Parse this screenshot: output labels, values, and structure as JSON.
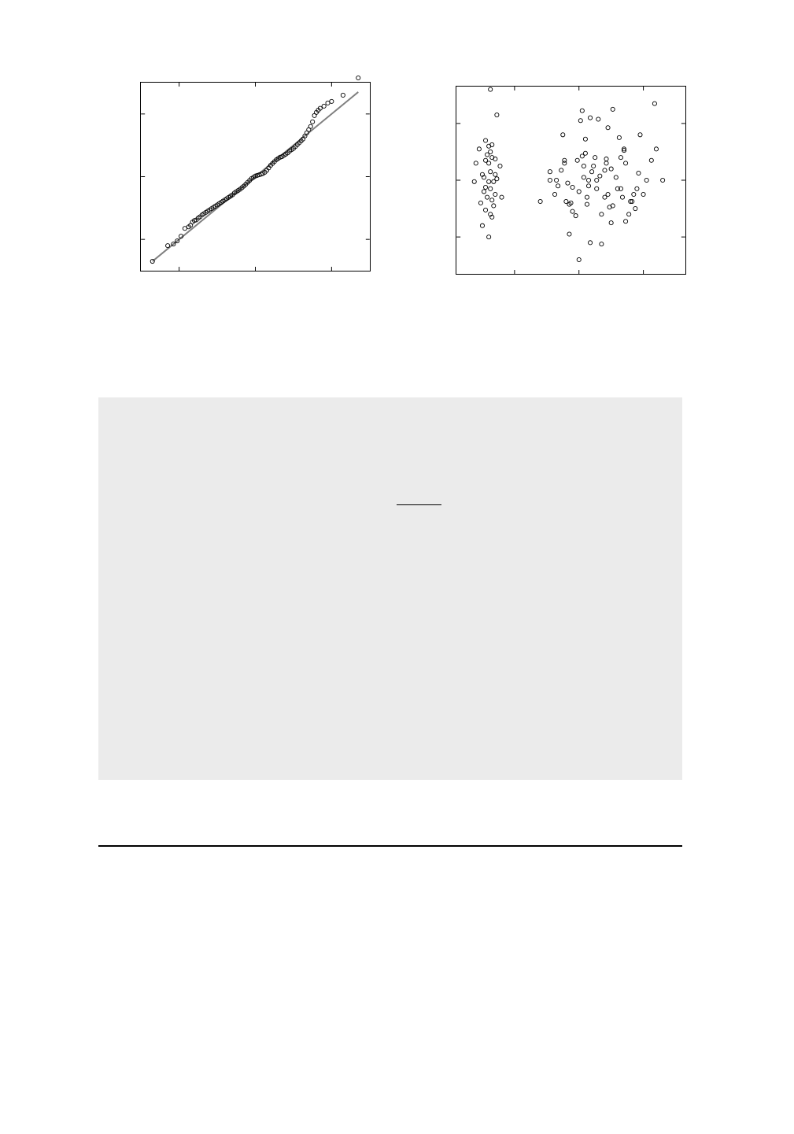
{
  "chart_data": [
    {
      "type": "scatter",
      "title": "",
      "xlabel": "",
      "ylabel": "",
      "grid": false,
      "xlim": [
        -3,
        3
      ],
      "ylim": [
        -3,
        3
      ],
      "xticks": [
        -2,
        0,
        2
      ],
      "yticks": [
        -2,
        0,
        2
      ],
      "reference_line": {
        "from": [
          -2.7,
          -2.7
        ],
        "to": [
          2.7,
          2.7
        ]
      },
      "series": [
        {
          "points": [
            [
              -2.7,
              -2.7
            ],
            [
              -2.3,
              -2.2
            ],
            [
              -2.15,
              -2.15
            ],
            [
              -2.05,
              -2.05
            ],
            [
              -1.95,
              -1.9
            ],
            [
              -1.85,
              -1.65
            ],
            [
              -1.75,
              -1.6
            ],
            [
              -1.7,
              -1.55
            ],
            [
              -1.65,
              -1.45
            ],
            [
              -1.6,
              -1.4
            ],
            [
              -1.55,
              -1.38
            ],
            [
              -1.5,
              -1.32
            ],
            [
              -1.45,
              -1.28
            ],
            [
              -1.4,
              -1.22
            ],
            [
              -1.35,
              -1.18
            ],
            [
              -1.3,
              -1.14
            ],
            [
              -1.25,
              -1.1
            ],
            [
              -1.2,
              -1.06
            ],
            [
              -1.15,
              -1.02
            ],
            [
              -1.1,
              -0.98
            ],
            [
              -1.05,
              -0.94
            ],
            [
              -1.0,
              -0.9
            ],
            [
              -0.95,
              -0.86
            ],
            [
              -0.9,
              -0.82
            ],
            [
              -0.85,
              -0.78
            ],
            [
              -0.8,
              -0.74
            ],
            [
              -0.75,
              -0.7
            ],
            [
              -0.7,
              -0.66
            ],
            [
              -0.65,
              -0.62
            ],
            [
              -0.6,
              -0.58
            ],
            [
              -0.55,
              -0.52
            ],
            [
              -0.5,
              -0.48
            ],
            [
              -0.45,
              -0.44
            ],
            [
              -0.4,
              -0.4
            ],
            [
              -0.35,
              -0.35
            ],
            [
              -0.3,
              -0.3
            ],
            [
              -0.25,
              -0.24
            ],
            [
              -0.2,
              -0.18
            ],
            [
              -0.15,
              -0.12
            ],
            [
              -0.1,
              -0.06
            ],
            [
              -0.05,
              -0.02
            ],
            [
              0.0,
              0.02
            ],
            [
              0.05,
              0.04
            ],
            [
              0.1,
              0.06
            ],
            [
              0.15,
              0.08
            ],
            [
              0.2,
              0.1
            ],
            [
              0.25,
              0.14
            ],
            [
              0.3,
              0.2
            ],
            [
              0.35,
              0.28
            ],
            [
              0.4,
              0.36
            ],
            [
              0.45,
              0.42
            ],
            [
              0.5,
              0.48
            ],
            [
              0.55,
              0.54
            ],
            [
              0.6,
              0.58
            ],
            [
              0.65,
              0.62
            ],
            [
              0.7,
              0.64
            ],
            [
              0.75,
              0.68
            ],
            [
              0.8,
              0.72
            ],
            [
              0.85,
              0.76
            ],
            [
              0.9,
              0.82
            ],
            [
              0.95,
              0.86
            ],
            [
              1.0,
              0.9
            ],
            [
              1.05,
              0.96
            ],
            [
              1.1,
              1.02
            ],
            [
              1.15,
              1.08
            ],
            [
              1.2,
              1.14
            ],
            [
              1.25,
              1.2
            ],
            [
              1.3,
              1.3
            ],
            [
              1.35,
              1.4
            ],
            [
              1.4,
              1.5
            ],
            [
              1.45,
              1.6
            ],
            [
              1.5,
              1.75
            ],
            [
              1.55,
              1.95
            ],
            [
              1.6,
              2.05
            ],
            [
              1.65,
              2.12
            ],
            [
              1.7,
              2.18
            ],
            [
              1.8,
              2.25
            ],
            [
              1.9,
              2.35
            ],
            [
              2.0,
              2.4
            ],
            [
              2.3,
              2.6
            ],
            [
              2.7,
              3.15
            ]
          ]
        }
      ]
    },
    {
      "type": "scatter",
      "title": "",
      "xlabel": "",
      "ylabel": "",
      "grid": false,
      "xlim": [
        -3.8,
        3.3
      ],
      "ylim": [
        -3.3,
        3.3
      ],
      "xticks": [
        -2,
        0,
        2
      ],
      "yticks": [
        -2,
        0,
        2
      ],
      "series": [
        {
          "points": [
            [
              -3.25,
              -0.05
            ],
            [
              -3.2,
              0.6
            ],
            [
              -3.1,
              1.1
            ],
            [
              -3.05,
              -0.8
            ],
            [
              -3.0,
              0.2
            ],
            [
              -3.0,
              -1.6
            ],
            [
              -2.95,
              0.1
            ],
            [
              -2.95,
              -0.4
            ],
            [
              -2.9,
              0.7
            ],
            [
              -2.9,
              1.4
            ],
            [
              -2.9,
              -1.05
            ],
            [
              -2.9,
              -0.25
            ],
            [
              -2.85,
              0.9
            ],
            [
              -2.85,
              -0.6
            ],
            [
              -2.8,
              1.2
            ],
            [
              -2.8,
              0.6
            ],
            [
              -2.8,
              -0.05
            ],
            [
              -2.8,
              -2.0
            ],
            [
              -2.75,
              3.2
            ],
            [
              -2.75,
              1.0
            ],
            [
              -2.75,
              0.3
            ],
            [
              -2.75,
              -0.3
            ],
            [
              -2.75,
              -1.2
            ],
            [
              -2.7,
              1.25
            ],
            [
              -2.7,
              0.8
            ],
            [
              -2.7,
              -0.7
            ],
            [
              -2.7,
              -1.3
            ],
            [
              -2.65,
              -0.05
            ],
            [
              -2.65,
              -0.9
            ],
            [
              -2.6,
              0.75
            ],
            [
              -2.6,
              0.2
            ],
            [
              -2.6,
              -0.5
            ],
            [
              -2.55,
              2.3
            ],
            [
              -2.55,
              0.05
            ],
            [
              -2.45,
              0.5
            ],
            [
              -2.4,
              -0.6
            ],
            [
              -1.2,
              -0.75
            ],
            [
              -0.9,
              0.3
            ],
            [
              -0.9,
              0.0
            ],
            [
              -0.75,
              -0.5
            ],
            [
              -0.7,
              0.0
            ],
            [
              -0.65,
              -0.2
            ],
            [
              -0.55,
              0.35
            ],
            [
              -0.5,
              1.6
            ],
            [
              -0.45,
              0.6
            ],
            [
              -0.45,
              0.7
            ],
            [
              -0.4,
              -0.75
            ],
            [
              -0.35,
              -0.1
            ],
            [
              -0.3,
              -0.85
            ],
            [
              -0.3,
              -1.9
            ],
            [
              -0.25,
              -0.8
            ],
            [
              -0.2,
              -0.25
            ],
            [
              -0.2,
              -1.1
            ],
            [
              -0.1,
              -1.25
            ],
            [
              -0.05,
              0.7
            ],
            [
              0.0,
              -0.4
            ],
            [
              0.0,
              -2.8
            ],
            [
              0.05,
              2.1
            ],
            [
              0.1,
              0.85
            ],
            [
              0.1,
              2.45
            ],
            [
              0.15,
              0.1
            ],
            [
              0.15,
              0.5
            ],
            [
              0.2,
              0.95
            ],
            [
              0.2,
              1.45
            ],
            [
              0.25,
              -0.6
            ],
            [
              0.25,
              -0.85
            ],
            [
              0.3,
              0.0
            ],
            [
              0.3,
              -0.2
            ],
            [
              0.35,
              2.2
            ],
            [
              0.35,
              -2.2
            ],
            [
              0.4,
              0.3
            ],
            [
              0.45,
              0.5
            ],
            [
              0.5,
              0.8
            ],
            [
              0.55,
              0.0
            ],
            [
              0.55,
              -0.3
            ],
            [
              0.6,
              2.15
            ],
            [
              0.65,
              0.15
            ],
            [
              0.7,
              -1.2
            ],
            [
              0.7,
              -2.25
            ],
            [
              0.8,
              0.35
            ],
            [
              0.8,
              -0.6
            ],
            [
              0.85,
              0.75
            ],
            [
              0.85,
              0.6
            ],
            [
              0.9,
              -0.5
            ],
            [
              0.9,
              1.85
            ],
            [
              0.95,
              -0.95
            ],
            [
              1.0,
              0.4
            ],
            [
              1.0,
              -1.5
            ],
            [
              1.05,
              2.5
            ],
            [
              1.05,
              -0.9
            ],
            [
              1.15,
              0.1
            ],
            [
              1.2,
              -0.3
            ],
            [
              1.25,
              1.5
            ],
            [
              1.3,
              0.8
            ],
            [
              1.3,
              -0.3
            ],
            [
              1.35,
              -0.6
            ],
            [
              1.4,
              1.05
            ],
            [
              1.4,
              1.1
            ],
            [
              1.45,
              0.6
            ],
            [
              1.45,
              -1.45
            ],
            [
              1.55,
              -1.2
            ],
            [
              1.6,
              -0.75
            ],
            [
              1.65,
              -0.75
            ],
            [
              1.7,
              -0.5
            ],
            [
              1.75,
              -1.0
            ],
            [
              1.8,
              -0.3
            ],
            [
              1.85,
              0.25
            ],
            [
              1.9,
              1.6
            ],
            [
              2.0,
              -0.5
            ],
            [
              2.1,
              0.0
            ],
            [
              2.25,
              0.7
            ],
            [
              2.35,
              2.7
            ],
            [
              2.4,
              1.1
            ],
            [
              2.6,
              0.0
            ]
          ]
        }
      ]
    }
  ]
}
